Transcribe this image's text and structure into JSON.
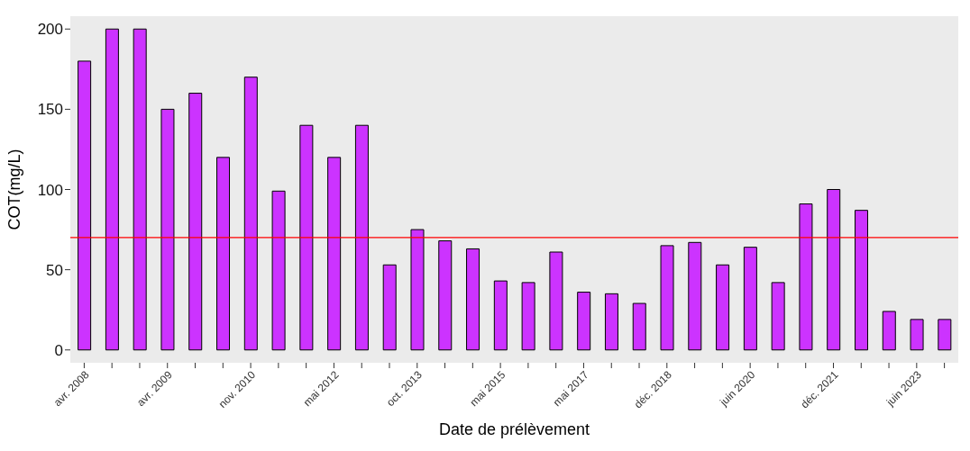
{
  "chart_data": {
    "type": "bar",
    "xlabel": "Date de prélèvement",
    "ylabel": "COT(mg/L)",
    "categories": [
      "avr. 2008",
      null,
      null,
      "avr. 2009",
      null,
      null,
      "nov. 2010",
      null,
      null,
      "mai 2012",
      null,
      null,
      "oct. 2013",
      null,
      null,
      "mai 2015",
      null,
      null,
      "mai 2017",
      null,
      null,
      "déc. 2018",
      null,
      null,
      "juin 2020",
      null,
      null,
      "déc. 2021",
      null,
      null,
      "juin 2023",
      null
    ],
    "values": [
      180,
      200,
      200,
      150,
      160,
      120,
      170,
      99,
      140,
      120,
      140,
      53,
      75,
      68,
      63,
      43,
      42,
      61,
      36,
      35,
      29,
      65,
      67,
      53,
      64,
      42,
      91,
      100,
      87,
      24,
      19,
      19
    ],
    "color": "#cc33ff",
    "ylim": [
      -8,
      208
    ],
    "yticks": [
      0,
      50,
      100,
      150,
      200
    ],
    "grid": false,
    "ref_lines": [
      {
        "axis": "y",
        "value": 70,
        "color": "#ff0000"
      }
    ]
  }
}
